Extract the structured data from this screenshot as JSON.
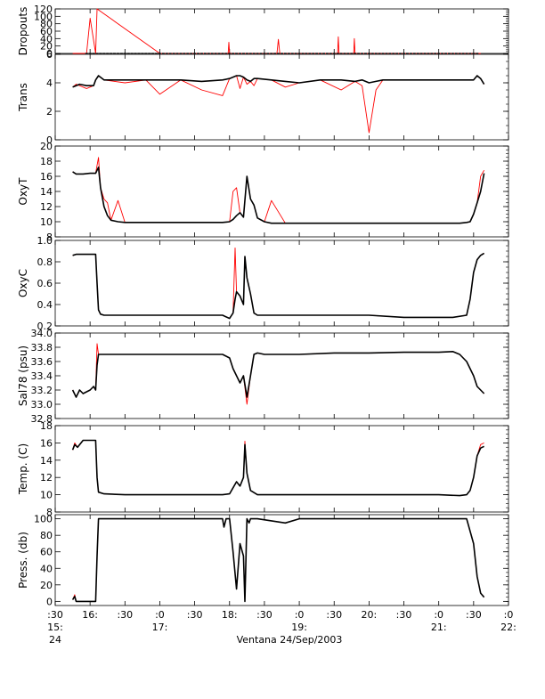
{
  "figure": {
    "xlabel": "Ventana 24/Sep/2003",
    "x_tick_top": [
      ":30",
      "16:",
      ":30",
      ":0",
      ":30",
      "18:",
      ":30",
      ":0",
      ":30",
      "20:",
      ":30",
      ":0",
      ":30",
      ":0"
    ],
    "x_tick_hour": [
      "15:",
      "",
      "",
      "17:",
      "",
      "",
      "",
      "19:",
      "",
      "",
      "",
      "21:",
      "",
      "22:"
    ],
    "x_tick_day": [
      "24",
      "",
      "",
      "",
      "",
      "",
      "",
      "",
      "",
      "",
      "",
      "",
      "",
      ""
    ]
  },
  "colors": {
    "raw": "#ff0000",
    "clean": "#000000",
    "axis": "#000000"
  },
  "chart_data": [
    {
      "type": "line",
      "ylabel": "Dropouts",
      "ylim": [
        0,
        120
      ],
      "yticks": [
        "0",
        "20",
        "40",
        "60",
        "80",
        "100",
        "120"
      ],
      "x": [
        15.75,
        15.95,
        16.0,
        16.08,
        16.1,
        17.0,
        17.7,
        17.98,
        17.99,
        18.0,
        18.5,
        18.68,
        18.7,
        18.72,
        18.8,
        19.0,
        19.5,
        19.55,
        19.56,
        19.57,
        19.7,
        19.78,
        19.79,
        19.8,
        20.5,
        21.0,
        21.5,
        21.6
      ],
      "series": [
        {
          "values": [
            0,
            0,
            95,
            0,
            120,
            0,
            0,
            0,
            30,
            0,
            0,
            0,
            38,
            0,
            0,
            0,
            0,
            0,
            45,
            0,
            0,
            0,
            40,
            0,
            0,
            0,
            0,
            0
          ]
        }
      ]
    },
    {
      "type": "line",
      "ylabel": "Trans",
      "ylim": [
        0,
        6
      ],
      "yticks": [
        "0",
        "2",
        "4",
        "6"
      ],
      "x": [
        15.75,
        15.8,
        15.85,
        15.95,
        16.05,
        16.08,
        16.12,
        16.2,
        16.5,
        16.8,
        17.0,
        17.3,
        17.6,
        17.9,
        18.0,
        18.1,
        18.15,
        18.2,
        18.25,
        18.3,
        18.35,
        18.4,
        18.6,
        18.8,
        19.0,
        19.3,
        19.6,
        19.8,
        19.9,
        20.0,
        20.1,
        20.2,
        20.5,
        20.8,
        21.0,
        21.2,
        21.4,
        21.5,
        21.55,
        21.6,
        21.65
      ],
      "series": [
        {
          "name": "clean",
          "values": [
            3.7,
            3.8,
            3.9,
            3.8,
            3.8,
            4.2,
            4.5,
            4.2,
            4.2,
            4.2,
            4.2,
            4.2,
            4.1,
            4.2,
            4.3,
            4.5,
            4.5,
            4.4,
            4.2,
            4.1,
            4.3,
            4.3,
            4.2,
            4.1,
            4.0,
            4.2,
            4.2,
            4.1,
            4.2,
            4.0,
            4.1,
            4.2,
            4.2,
            4.2,
            4.2,
            4.2,
            4.2,
            4.2,
            4.5,
            4.3,
            3.9
          ]
        },
        {
          "name": "raw",
          "values": [
            3.7,
            3.9,
            3.8,
            3.6,
            3.8,
            4.2,
            4.5,
            4.2,
            4.0,
            4.2,
            3.2,
            4.2,
            3.5,
            3.1,
            4.3,
            4.5,
            3.6,
            4.4,
            3.9,
            4.1,
            3.8,
            4.3,
            4.2,
            3.7,
            4.0,
            4.2,
            3.5,
            4.1,
            3.8,
            0.5,
            3.5,
            4.2,
            4.2,
            4.2,
            4.2,
            4.2,
            4.2,
            4.2,
            4.5,
            4.3,
            3.9
          ]
        }
      ]
    },
    {
      "type": "line",
      "ylabel": "OxyT",
      "ylim": [
        8,
        20
      ],
      "yticks": [
        "8",
        "10",
        "12",
        "14",
        "16",
        "18",
        "20"
      ],
      "x": [
        15.75,
        15.8,
        15.9,
        16.0,
        16.05,
        16.08,
        16.12,
        16.15,
        16.2,
        16.25,
        16.3,
        16.4,
        16.5,
        17.0,
        17.5,
        17.9,
        18.0,
        18.05,
        18.1,
        18.15,
        18.2,
        18.25,
        18.3,
        18.35,
        18.4,
        18.5,
        18.6,
        18.8,
        19.0,
        19.5,
        20.0,
        20.5,
        21.0,
        21.2,
        21.3,
        21.4,
        21.45,
        21.5,
        21.55,
        21.6,
        21.65
      ],
      "series": [
        {
          "name": "clean",
          "values": [
            16.6,
            16.3,
            16.3,
            16.4,
            16.4,
            16.4,
            17.2,
            14.5,
            12.0,
            10.8,
            10.2,
            10.0,
            9.9,
            9.9,
            9.9,
            9.9,
            10.0,
            10.3,
            10.8,
            11.2,
            10.6,
            16.0,
            13.0,
            12.2,
            10.5,
            10.0,
            9.8,
            9.8,
            9.8,
            9.8,
            9.8,
            9.8,
            9.8,
            9.8,
            9.8,
            9.9,
            10.0,
            11.0,
            12.5,
            14.0,
            16.4
          ]
        },
        {
          "name": "raw",
          "values": [
            16.6,
            16.3,
            16.3,
            16.4,
            16.4,
            16.4,
            18.5,
            14.5,
            13.0,
            12.5,
            10.2,
            12.8,
            9.9,
            9.9,
            9.9,
            9.9,
            10.0,
            14.0,
            14.5,
            11.2,
            10.6,
            16.0,
            13.0,
            12.2,
            10.5,
            10.0,
            12.8,
            9.8,
            9.8,
            9.8,
            9.8,
            9.8,
            9.8,
            9.8,
            9.8,
            9.9,
            10.0,
            11.0,
            12.5,
            16.0,
            16.8
          ]
        }
      ]
    },
    {
      "type": "line",
      "ylabel": "OxyC",
      "ylim": [
        0.2,
        1.0
      ],
      "yticks": [
        "0.2",
        "0.4",
        "0.6",
        "0.8",
        "1.0"
      ],
      "x": [
        15.75,
        15.8,
        15.9,
        16.0,
        16.05,
        16.08,
        16.1,
        16.12,
        16.15,
        16.2,
        16.3,
        16.5,
        17.0,
        17.5,
        17.9,
        18.0,
        18.05,
        18.08,
        18.1,
        18.15,
        18.2,
        18.22,
        18.25,
        18.3,
        18.35,
        18.4,
        18.5,
        18.8,
        19.0,
        19.5,
        20.0,
        20.5,
        21.0,
        21.2,
        21.4,
        21.45,
        21.5,
        21.55,
        21.6,
        21.65
      ],
      "series": [
        {
          "name": "clean",
          "values": [
            0.86,
            0.87,
            0.87,
            0.87,
            0.87,
            0.87,
            0.6,
            0.35,
            0.31,
            0.3,
            0.3,
            0.3,
            0.3,
            0.3,
            0.3,
            0.27,
            0.32,
            0.45,
            0.52,
            0.48,
            0.4,
            0.85,
            0.65,
            0.5,
            0.32,
            0.3,
            0.3,
            0.3,
            0.3,
            0.3,
            0.3,
            0.28,
            0.28,
            0.28,
            0.3,
            0.45,
            0.7,
            0.82,
            0.86,
            0.88
          ]
        },
        {
          "name": "raw",
          "values": [
            0.86,
            0.87,
            0.87,
            0.87,
            0.87,
            0.87,
            0.6,
            0.35,
            0.31,
            0.3,
            0.3,
            0.3,
            0.3,
            0.3,
            0.3,
            0.27,
            0.32,
            0.93,
            0.52,
            0.48,
            0.4,
            0.85,
            0.65,
            0.5,
            0.32,
            0.3,
            0.3,
            0.3,
            0.3,
            0.3,
            0.3,
            0.28,
            0.28,
            0.28,
            0.3,
            0.45,
            0.7,
            0.82,
            0.86,
            0.88
          ]
        }
      ]
    },
    {
      "type": "line",
      "ylabel": "Sal78 (psu)",
      "ylim": [
        32.8,
        34.0
      ],
      "yticks": [
        "32.8",
        "33.0",
        "33.2",
        "33.4",
        "33.6",
        "33.8",
        "34.0"
      ],
      "x": [
        15.75,
        15.8,
        15.85,
        15.9,
        16.0,
        16.05,
        16.08,
        16.1,
        16.12,
        16.2,
        16.5,
        17.0,
        17.5,
        17.9,
        18.0,
        18.05,
        18.1,
        18.15,
        18.2,
        18.25,
        18.3,
        18.35,
        18.4,
        18.5,
        18.8,
        19.0,
        19.5,
        20.0,
        20.5,
        21.0,
        21.2,
        21.3,
        21.4,
        21.5,
        21.55,
        21.6,
        21.65
      ],
      "series": [
        {
          "name": "clean",
          "values": [
            33.2,
            33.1,
            33.2,
            33.15,
            33.2,
            33.25,
            33.2,
            33.55,
            33.7,
            33.7,
            33.7,
            33.7,
            33.7,
            33.7,
            33.65,
            33.5,
            33.4,
            33.3,
            33.4,
            33.1,
            33.4,
            33.7,
            33.72,
            33.7,
            33.7,
            33.7,
            33.72,
            33.72,
            33.73,
            33.73,
            33.74,
            33.7,
            33.6,
            33.4,
            33.25,
            33.2,
            33.15
          ]
        },
        {
          "name": "raw",
          "values": [
            33.2,
            33.1,
            33.2,
            33.15,
            33.2,
            33.25,
            33.2,
            33.85,
            33.7,
            33.7,
            33.7,
            33.7,
            33.7,
            33.7,
            33.65,
            33.5,
            33.4,
            33.3,
            33.4,
            33.0,
            33.4,
            33.7,
            33.72,
            33.7,
            33.7,
            33.7,
            33.72,
            33.72,
            33.73,
            33.73,
            33.74,
            33.7,
            33.6,
            33.4,
            33.25,
            33.2,
            33.15
          ]
        }
      ]
    },
    {
      "type": "line",
      "ylabel": "Temp. (C)",
      "ylim": [
        8,
        18
      ],
      "yticks": [
        "8",
        "10",
        "12",
        "14",
        "16",
        "18"
      ],
      "x": [
        15.75,
        15.78,
        15.82,
        15.9,
        16.0,
        16.05,
        16.08,
        16.1,
        16.12,
        16.2,
        16.5,
        17.0,
        17.5,
        17.9,
        18.0,
        18.05,
        18.1,
        18.15,
        18.2,
        18.22,
        18.25,
        18.3,
        18.4,
        18.5,
        19.0,
        19.5,
        20.0,
        20.5,
        21.0,
        21.3,
        21.4,
        21.45,
        21.5,
        21.55,
        21.6,
        21.65
      ],
      "series": [
        {
          "name": "clean",
          "values": [
            15.2,
            15.8,
            15.5,
            16.3,
            16.3,
            16.3,
            16.3,
            12.0,
            10.3,
            10.1,
            10.0,
            10.0,
            10.0,
            10.0,
            10.1,
            10.8,
            11.5,
            11.0,
            12.0,
            15.8,
            12.5,
            10.5,
            10.0,
            10.0,
            10.0,
            10.0,
            10.0,
            10.0,
            10.0,
            9.9,
            10.0,
            10.5,
            12.0,
            14.5,
            15.4,
            15.6
          ]
        },
        {
          "name": "raw",
          "values": [
            15.2,
            16.0,
            15.5,
            16.3,
            16.3,
            16.3,
            16.3,
            12.0,
            10.3,
            10.1,
            10.0,
            10.0,
            10.0,
            10.0,
            10.1,
            10.8,
            11.5,
            11.0,
            12.0,
            16.2,
            12.5,
            10.5,
            10.0,
            10.0,
            10.0,
            10.0,
            10.0,
            10.0,
            10.0,
            9.9,
            10.0,
            10.5,
            12.0,
            14.5,
            15.8,
            16.0
          ]
        }
      ]
    },
    {
      "type": "line",
      "ylabel": "Press. (db)",
      "ylim": [
        -5,
        105
      ],
      "yticks": [
        "0",
        "20",
        "40",
        "60",
        "80",
        "100"
      ],
      "x": [
        15.75,
        15.78,
        15.8,
        15.85,
        15.9,
        16.0,
        16.05,
        16.08,
        16.1,
        16.12,
        16.2,
        16.5,
        16.8,
        17.0,
        17.3,
        17.6,
        17.9,
        17.92,
        17.95,
        18.0,
        18.05,
        18.1,
        18.15,
        18.2,
        18.22,
        18.25,
        18.28,
        18.3,
        18.35,
        18.4,
        18.8,
        19.0,
        19.5,
        20.0,
        20.5,
        21.0,
        21.3,
        21.4,
        21.5,
        21.55,
        21.6,
        21.65
      ],
      "series": [
        {
          "name": "clean",
          "values": [
            2,
            6,
            0,
            0,
            0,
            0,
            0,
            0,
            55,
            100,
            100,
            100,
            100,
            100,
            100,
            100,
            100,
            90,
            100,
            100,
            60,
            15,
            70,
            55,
            0,
            100,
            95,
            100,
            100,
            100,
            95,
            100,
            100,
            100,
            100,
            100,
            100,
            100,
            70,
            30,
            10,
            5
          ]
        },
        {
          "name": "raw",
          "values": [
            2,
            8,
            0,
            0,
            0,
            0,
            0,
            0,
            55,
            100,
            100,
            100,
            100,
            100,
            100,
            100,
            100,
            90,
            100,
            100,
            60,
            15,
            70,
            55,
            0,
            100,
            95,
            100,
            100,
            100,
            95,
            100,
            100,
            100,
            100,
            100,
            100,
            100,
            70,
            30,
            10,
            5
          ]
        }
      ]
    }
  ]
}
